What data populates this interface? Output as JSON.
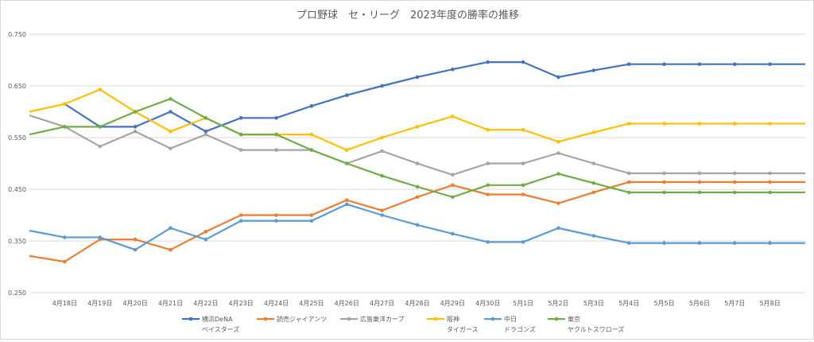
{
  "chart_data": {
    "type": "line",
    "title": "プロ野球　セ・リーグ　2023年度の勝率の推移",
    "xlabel": "",
    "ylabel": "",
    "ylim": [
      0.25,
      0.75
    ],
    "yticks": [
      "0.250",
      "0.350",
      "0.450",
      "0.550",
      "0.650",
      "0.750"
    ],
    "ytick_values": [
      0.25,
      0.35,
      0.45,
      0.55,
      0.65,
      0.75
    ],
    "grid": true,
    "legend_position": "bottom",
    "categories": [
      "",
      "4月18日",
      "4月19日",
      "4月20日",
      "4月21日",
      "4月22日",
      "4月23日",
      "4月24日",
      "4月25日",
      "4月26日",
      "4月27日",
      "4月28日",
      "4月29日",
      "4月30日",
      "5月1日",
      "5月2日",
      "5月3日",
      "5月4日",
      "5月5日",
      "5月6日",
      "5月7日",
      "5月8日",
      ""
    ],
    "series": [
      {
        "name": "横浜DeNA",
        "name_line2": "ベイスターズ",
        "color": "#4472C4",
        "values": [
          null,
          0.615,
          0.571,
          0.571,
          0.6,
          0.562,
          0.588,
          0.588,
          0.611,
          0.632,
          0.65,
          0.667,
          0.682,
          0.696,
          0.696,
          0.667,
          0.68,
          0.692,
          0.692,
          0.692,
          0.692,
          0.692,
          0.692
        ]
      },
      {
        "name": "読売ジャイアンツ",
        "name_line2": "",
        "color": "#ED7D31",
        "values": [
          0.321,
          0.31,
          0.353,
          0.353,
          0.333,
          0.368,
          0.4,
          0.4,
          0.4,
          0.429,
          0.409,
          0.435,
          0.458,
          0.44,
          0.44,
          0.423,
          0.444,
          0.464,
          0.464,
          0.464,
          0.464,
          0.464,
          0.464
        ]
      },
      {
        "name": "広島東洋カープ",
        "name_line2": "",
        "color": "#A5A5A5",
        "values": [
          0.593,
          0.571,
          0.533,
          0.562,
          0.529,
          0.556,
          0.526,
          0.526,
          0.526,
          0.5,
          0.524,
          0.5,
          0.478,
          0.5,
          0.5,
          0.52,
          0.5,
          0.481,
          0.481,
          0.481,
          0.481,
          0.481,
          0.481
        ]
      },
      {
        "name": "阪神",
        "name_line2": "タイガース",
        "color": "#FFC000",
        "values": [
          0.6,
          0.615,
          0.643,
          0.6,
          0.562,
          0.588,
          0.556,
          0.556,
          0.556,
          0.526,
          0.55,
          0.571,
          0.591,
          0.565,
          0.565,
          0.542,
          0.56,
          0.577,
          0.577,
          0.577,
          0.577,
          0.577,
          0.577
        ]
      },
      {
        "name": "中日",
        "name_line2": "ドラゴンズ",
        "color": "#5B9BD5",
        "values": [
          0.37,
          0.357,
          0.357,
          0.333,
          0.375,
          0.353,
          0.389,
          0.389,
          0.389,
          0.421,
          0.4,
          0.381,
          0.364,
          0.348,
          0.348,
          0.375,
          0.36,
          0.346,
          0.346,
          0.346,
          0.346,
          0.346,
          0.346
        ]
      },
      {
        "name": "東京",
        "name_line2": "ヤクルトスワローズ",
        "color": "#70AD47",
        "values": [
          0.556,
          0.571,
          0.571,
          0.6,
          0.625,
          0.588,
          0.556,
          0.556,
          0.526,
          0.5,
          0.476,
          0.455,
          0.435,
          0.458,
          0.458,
          0.48,
          0.462,
          0.444,
          0.444,
          0.444,
          0.444,
          0.444,
          0.444
        ]
      }
    ]
  }
}
